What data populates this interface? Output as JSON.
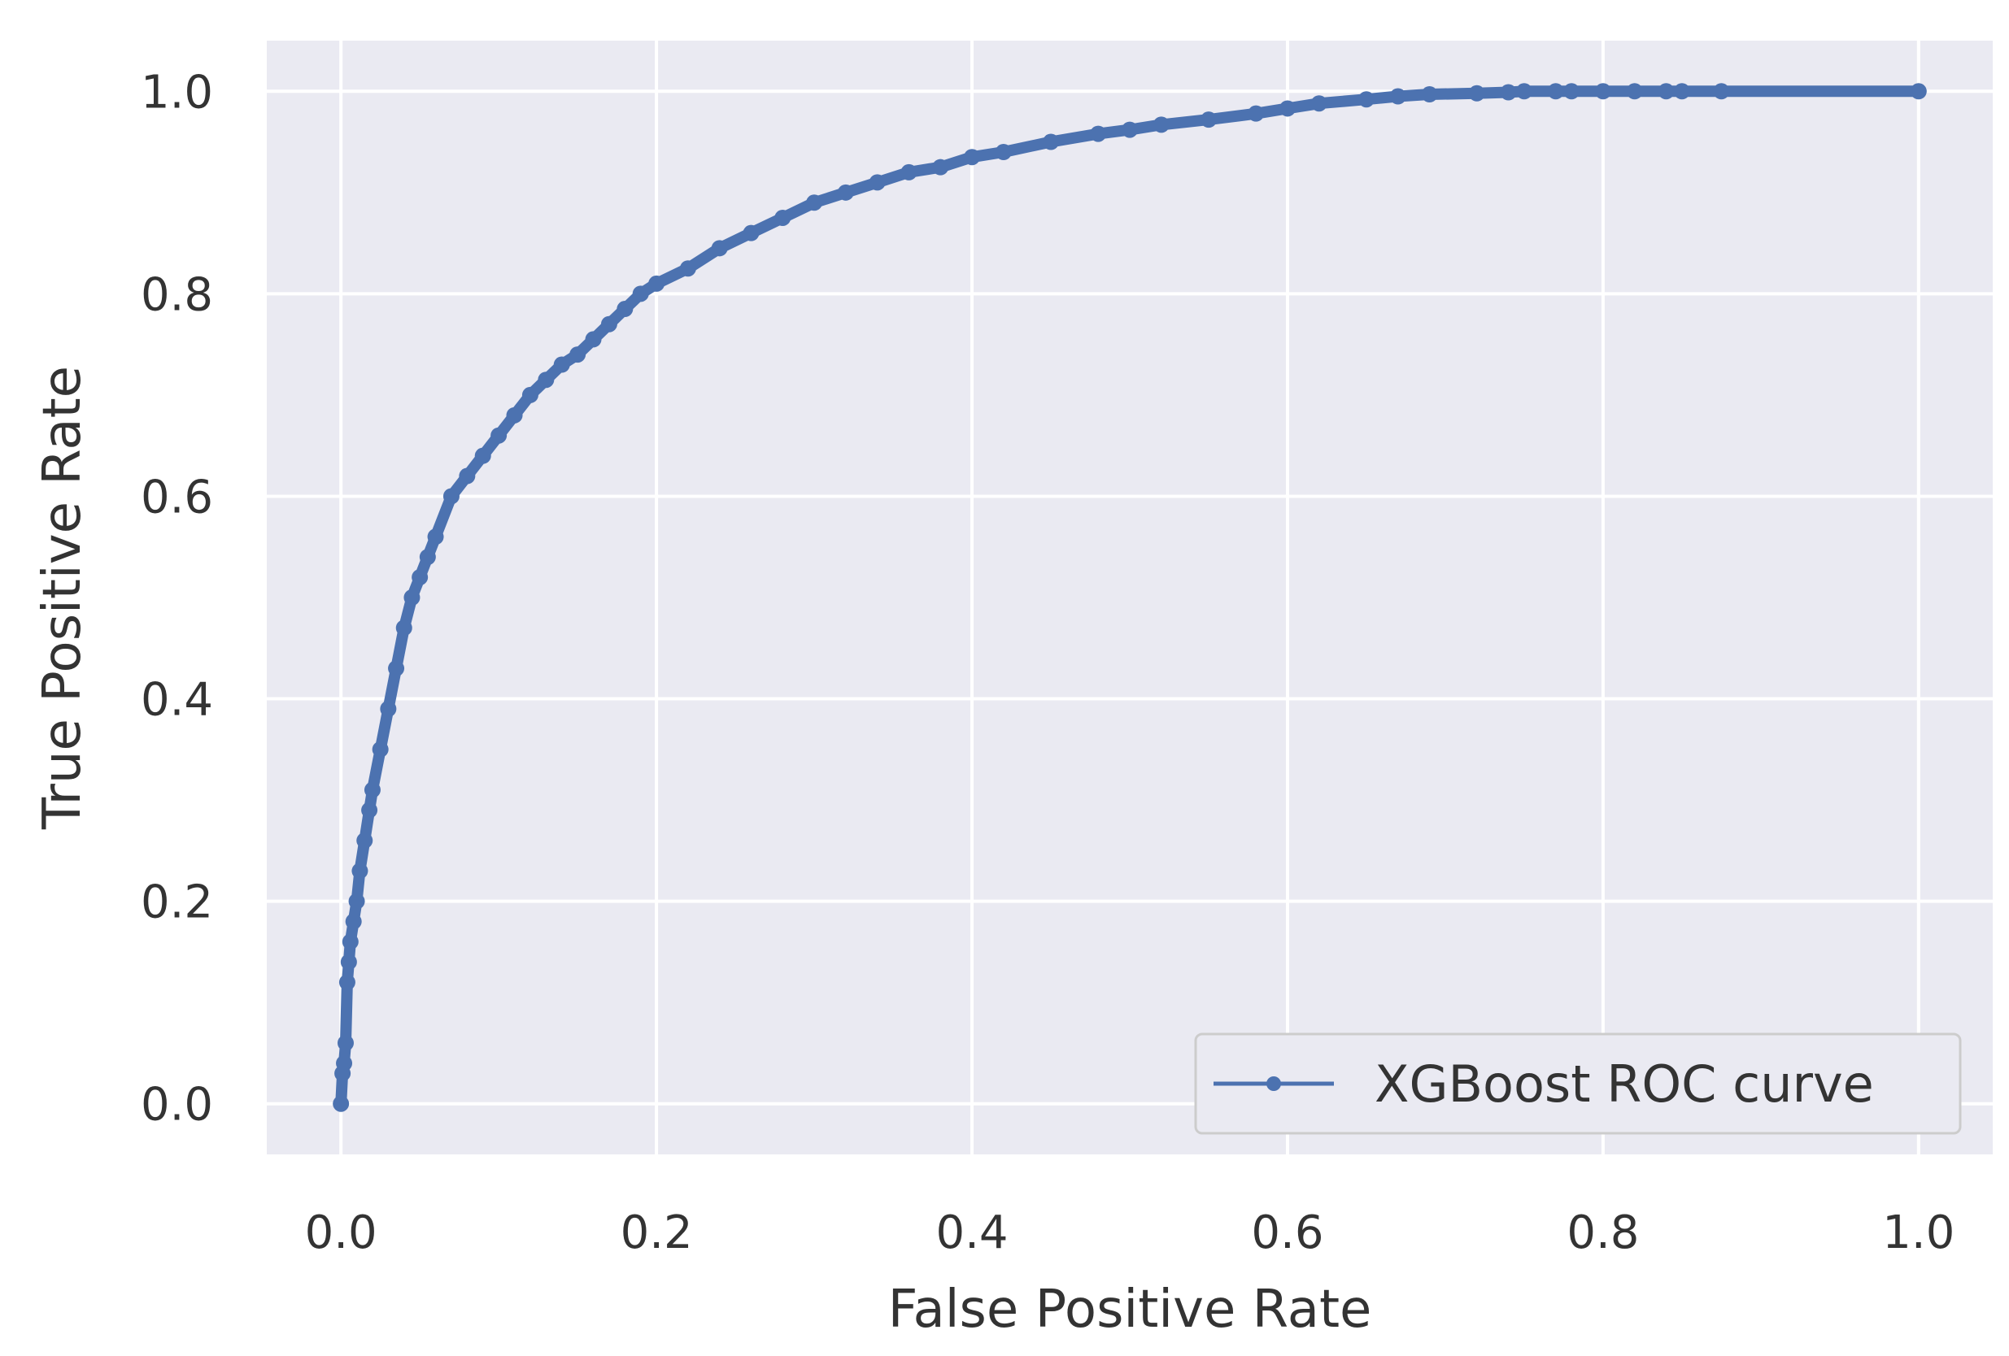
{
  "chart_data": {
    "type": "line",
    "title": "",
    "xlabel": "False Positive Rate",
    "ylabel": "True Positive Rate",
    "xlim": [
      -0.047,
      1.047
    ],
    "ylim": [
      -0.05,
      1.05
    ],
    "x_ticks": [
      0.0,
      0.2,
      0.4,
      0.6,
      0.8,
      1.0
    ],
    "y_ticks": [
      0.0,
      0.2,
      0.4,
      0.6,
      0.8,
      1.0
    ],
    "x_tick_labels": [
      "0.0",
      "0.2",
      "0.4",
      "0.6",
      "0.8",
      "1.0"
    ],
    "y_tick_labels": [
      "0.0",
      "0.2",
      "0.4",
      "0.6",
      "0.8",
      "1.0"
    ],
    "grid": true,
    "style": "seaborn-darkgrid",
    "legend": {
      "position": "lower-right",
      "entries": [
        "XGBoost ROC curve"
      ]
    },
    "colors": {
      "background": "#eaeaf2",
      "grid": "#ffffff",
      "series": "#4c72b0",
      "text": "#333333"
    },
    "series": [
      {
        "name": "XGBoost ROC curve",
        "marker": "dot",
        "x": [
          0.0,
          0.001,
          0.002,
          0.003,
          0.004,
          0.005,
          0.006,
          0.008,
          0.01,
          0.012,
          0.015,
          0.018,
          0.02,
          0.025,
          0.03,
          0.035,
          0.04,
          0.045,
          0.05,
          0.055,
          0.06,
          0.07,
          0.08,
          0.09,
          0.1,
          0.11,
          0.12,
          0.13,
          0.14,
          0.15,
          0.16,
          0.17,
          0.18,
          0.19,
          0.2,
          0.22,
          0.24,
          0.26,
          0.28,
          0.3,
          0.32,
          0.34,
          0.36,
          0.38,
          0.4,
          0.42,
          0.45,
          0.48,
          0.5,
          0.52,
          0.55,
          0.58,
          0.6,
          0.62,
          0.65,
          0.67,
          0.69,
          0.72,
          0.74,
          0.75,
          0.77,
          0.78,
          0.8,
          0.82,
          0.84,
          0.85,
          0.875,
          1.0
        ],
        "y": [
          0.0,
          0.03,
          0.04,
          0.06,
          0.12,
          0.14,
          0.16,
          0.18,
          0.2,
          0.23,
          0.26,
          0.29,
          0.31,
          0.35,
          0.39,
          0.43,
          0.47,
          0.5,
          0.52,
          0.54,
          0.56,
          0.6,
          0.62,
          0.64,
          0.66,
          0.68,
          0.7,
          0.715,
          0.73,
          0.74,
          0.755,
          0.77,
          0.785,
          0.8,
          0.81,
          0.825,
          0.845,
          0.86,
          0.875,
          0.89,
          0.9,
          0.91,
          0.92,
          0.925,
          0.935,
          0.94,
          0.95,
          0.958,
          0.962,
          0.967,
          0.972,
          0.978,
          0.983,
          0.988,
          0.992,
          0.995,
          0.997,
          0.998,
          0.999,
          1.0,
          1.0,
          1.0,
          1.0,
          1.0,
          1.0,
          1.0,
          1.0,
          1.0
        ]
      }
    ]
  }
}
